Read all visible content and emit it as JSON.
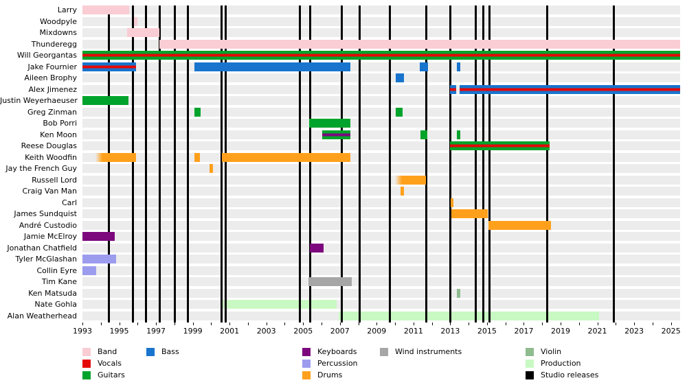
{
  "chart_data": {
    "type": "timeline",
    "title": "",
    "x_axis": {
      "min": 1993,
      "max": 2025.5,
      "tick_interval_years": 1,
      "tick_labels": [
        "1993",
        "1995",
        "1997",
        "1999",
        "2001",
        "2003",
        "2005",
        "2007",
        "2009",
        "2011",
        "2013",
        "2015",
        "2017",
        "2019",
        "2021",
        "2023",
        "2025"
      ],
      "label_years": [
        1993,
        1995,
        1997,
        1999,
        2001,
        2003,
        2005,
        2007,
        2009,
        2011,
        2013,
        2015,
        2017,
        2019,
        2021,
        2023,
        2025
      ]
    },
    "colors": {
      "band": "#f9cdd3",
      "vocals": "#e40808",
      "guitars": "#00a32b",
      "bass": "#1874cd",
      "keyboards": "#7d077d",
      "percussion": "#9c9cee",
      "drums": "#ffa01c",
      "wind": "#a6a6a6",
      "violin": "#8fbc8f",
      "production": "#c9f9c2",
      "studio_releases": "#000000"
    },
    "legend": [
      {
        "label": "Band",
        "role": "band",
        "col": 0,
        "row": 0
      },
      {
        "label": "Vocals",
        "role": "vocals",
        "col": 0,
        "row": 1
      },
      {
        "label": "Guitars",
        "role": "guitars",
        "col": 0,
        "row": 2
      },
      {
        "label": "Bass",
        "role": "bass",
        "col": 1,
        "row": 0
      },
      {
        "label": "Keyboards",
        "role": "keyboards",
        "col": 2,
        "row": 0
      },
      {
        "label": "Percussion",
        "role": "percussion",
        "col": 2,
        "row": 1
      },
      {
        "label": "Drums",
        "role": "drums",
        "col": 2,
        "row": 2
      },
      {
        "label": "Wind instruments",
        "role": "wind",
        "col": 3,
        "row": 0
      },
      {
        "label": "Violin",
        "role": "violin",
        "col": 4,
        "row": 0
      },
      {
        "label": "Production",
        "role": "production",
        "col": 4,
        "row": 1
      },
      {
        "label": "Studio releases",
        "role": "studio_releases",
        "col": 4,
        "row": 2
      }
    ],
    "studio_releases": [
      1994.42,
      1995.73,
      1996.44,
      1997.22,
      1998.01,
      1998.72,
      2000.58,
      2000.79,
      2004.84,
      2005.4,
      2007.12,
      2008.06,
      2009.7,
      2011.68,
      2012.99,
      2014.37,
      2014.78,
      2015.15,
      2018.29,
      2021.88
    ],
    "rows": [
      {
        "name": "Larry",
        "bars": [
          {
            "roles": [
              "band"
            ],
            "start": 1993.0,
            "end": 1995.55
          }
        ]
      },
      {
        "name": "Woodpyle",
        "bars": [
          {
            "roles": [
              "band"
            ],
            "start": 1995.82,
            "end": 1996.0
          }
        ]
      },
      {
        "name": "Mixdowns",
        "bars": [
          {
            "roles": [
              "band"
            ],
            "start": 1995.43,
            "end": 1997.18
          }
        ]
      },
      {
        "name": "Thunderegg",
        "bars": [
          {
            "roles": [
              "band"
            ],
            "start": 1997.18,
            "end": 2025.5
          }
        ]
      },
      {
        "name": "Will Georgantas",
        "bars": [
          {
            "roles": [
              "guitars",
              "vocals"
            ],
            "start": 1993.0,
            "end": 2025.5
          }
        ]
      },
      {
        "name": "Jake Fournier",
        "bars": [
          {
            "roles": [
              "bass",
              "vocals"
            ],
            "start": 1993.0,
            "end": 1995.93
          },
          {
            "roles": [
              "bass"
            ],
            "start": 1999.1,
            "end": 2007.57
          },
          {
            "roles": [
              "bass"
            ],
            "start": 2011.33,
            "end": 2011.8
          },
          {
            "roles": [
              "bass"
            ],
            "start": 2013.36,
            "end": 2013.54
          }
        ]
      },
      {
        "name": "Aileen Brophy",
        "bars": [
          {
            "roles": [
              "bass"
            ],
            "start": 2010.03,
            "end": 2010.49
          }
        ]
      },
      {
        "name": "Alex Jimenez",
        "bars": [
          {
            "roles": [
              "bass",
              "vocals"
            ],
            "start": 2012.99,
            "end": 2013.33
          },
          {
            "roles": [
              "bass",
              "vocals"
            ],
            "start": 2013.49,
            "end": 2025.5
          }
        ]
      },
      {
        "name": "Justin Weyerhaeuser",
        "bars": [
          {
            "roles": [
              "guitars"
            ],
            "start": 1993.0,
            "end": 1995.49
          }
        ]
      },
      {
        "name": "Greg Zinman",
        "bars": [
          {
            "roles": [
              "guitars"
            ],
            "start": 1999.1,
            "end": 1999.42
          },
          {
            "roles": [
              "guitars"
            ],
            "start": 2010.03,
            "end": 2010.42
          }
        ]
      },
      {
        "name": "Bob Porri",
        "bars": [
          {
            "roles": [
              "guitars"
            ],
            "start": 2005.33,
            "end": 2007.57
          }
        ]
      },
      {
        "name": "Ken Moon",
        "bars": [
          {
            "roles": [
              "guitars",
              "keyboards"
            ],
            "start": 2006.04,
            "end": 2007.57
          },
          {
            "roles": [
              "guitars"
            ],
            "start": 2011.37,
            "end": 2011.74
          },
          {
            "roles": [
              "guitars"
            ],
            "start": 2013.36,
            "end": 2013.54
          }
        ]
      },
      {
        "name": "Reese Douglas",
        "bars": [
          {
            "roles": [
              "guitars",
              "vocals"
            ],
            "start": 2012.99,
            "end": 2018.4
          }
        ]
      },
      {
        "name": "Keith Woodfin",
        "bars": [
          {
            "roles": [
              "drums"
            ],
            "start": 1993.7,
            "end": 1995.93,
            "fade_left": true
          },
          {
            "roles": [
              "drums"
            ],
            "start": 1999.1,
            "end": 1999.39
          },
          {
            "roles": [
              "drums"
            ],
            "start": 2000.6,
            "end": 2007.57
          }
        ]
      },
      {
        "name": "Jay the French Guy",
        "bars": [
          {
            "roles": [
              "drums"
            ],
            "start": 1999.91,
            "end": 2000.1
          }
        ]
      },
      {
        "name": "Russell Lord",
        "bars": [
          {
            "roles": [
              "drums"
            ],
            "start": 2010.0,
            "end": 2011.68,
            "fade_left": true
          }
        ]
      },
      {
        "name": "Craig Van Man",
        "bars": [
          {
            "roles": [
              "drums"
            ],
            "start": 2010.29,
            "end": 2010.47
          }
        ]
      },
      {
        "name": "Carl",
        "bars": [
          {
            "roles": [
              "drums"
            ],
            "start": 2013.02,
            "end": 2013.17
          }
        ]
      },
      {
        "name": "James Sundquist",
        "bars": [
          {
            "roles": [
              "drums"
            ],
            "start": 2013.06,
            "end": 2015.04
          }
        ]
      },
      {
        "name": "André Custodio",
        "bars": [
          {
            "roles": [
              "drums"
            ],
            "start": 2015.07,
            "end": 2018.47
          }
        ]
      },
      {
        "name": "Jamie McElroy",
        "bars": [
          {
            "roles": [
              "keyboards"
            ],
            "start": 1993.0,
            "end": 1994.74
          }
        ]
      },
      {
        "name": "Jonathan Chatfield",
        "bars": [
          {
            "roles": [
              "keyboards"
            ],
            "start": 2005.36,
            "end": 2006.11
          }
        ]
      },
      {
        "name": "Tyler McGlashan",
        "bars": [
          {
            "roles": [
              "percussion"
            ],
            "start": 1993.0,
            "end": 1994.84
          }
        ]
      },
      {
        "name": "Collin Eyre",
        "bars": [
          {
            "roles": [
              "percussion"
            ],
            "start": 1993.0,
            "end": 1993.75
          }
        ]
      },
      {
        "name": "Tim Kane",
        "bars": [
          {
            "roles": [
              "wind"
            ],
            "start": 2005.29,
            "end": 2007.64
          }
        ]
      },
      {
        "name": "Ken Matsuda",
        "bars": [
          {
            "roles": [
              "violin"
            ],
            "start": 2013.36,
            "end": 2013.54
          }
        ]
      },
      {
        "name": "Nate Gohla",
        "bars": [
          {
            "roles": [
              "production"
            ],
            "start": 2000.62,
            "end": 2006.82
          }
        ]
      },
      {
        "name": "Alan Weatherhead",
        "bars": [
          {
            "roles": [
              "production"
            ],
            "start": 2006.93,
            "end": 2021.09
          }
        ]
      }
    ]
  }
}
